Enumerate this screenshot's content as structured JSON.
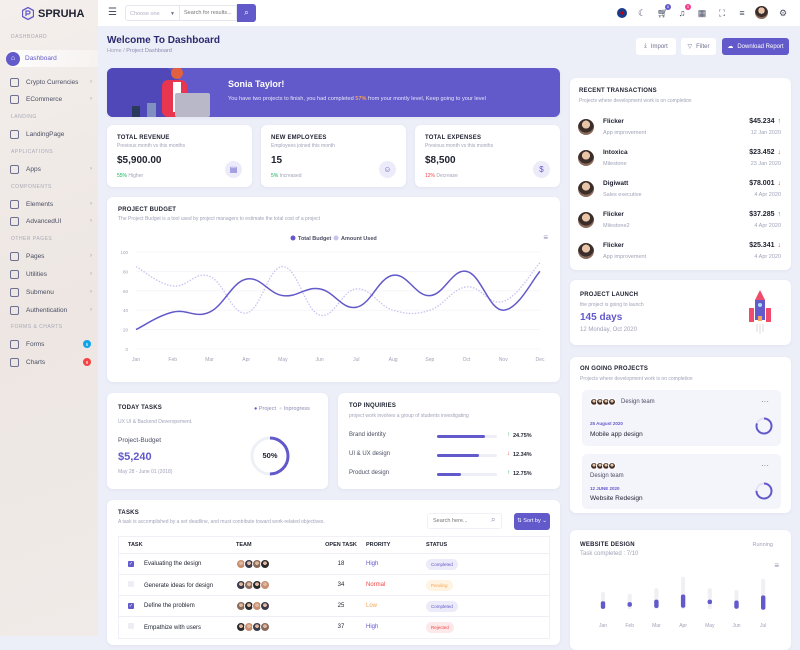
{
  "brand": {
    "name": "SPRUHA",
    "color": "#6259ca"
  },
  "sidebar": {
    "sections": [
      "DASHBOARD",
      "LANDING",
      "APPLICATIONS",
      "COMPONENTS",
      "OTHER PAGES",
      "FORMS & CHARTS"
    ],
    "items": [
      {
        "label": "Dashboard",
        "icon": "home-icon",
        "active": true
      },
      {
        "label": "Crypto Currencies",
        "icon": "wallet-icon"
      },
      {
        "label": "ECommerce",
        "icon": "cart-icon"
      },
      {
        "label": "LandingPage",
        "icon": "layout-icon"
      },
      {
        "label": "Apps",
        "icon": "files-icon"
      },
      {
        "label": "Elements",
        "icon": "box-icon"
      },
      {
        "label": "AdvancedUI",
        "icon": "briefcase-icon"
      },
      {
        "label": "Pages",
        "icon": "chat-icon"
      },
      {
        "label": "Utilities",
        "icon": "trident-icon"
      },
      {
        "label": "Submenu",
        "icon": "menu-icon"
      },
      {
        "label": "Authentication",
        "icon": "lock-icon"
      },
      {
        "label": "Forms",
        "icon": "form-icon",
        "badge": "6",
        "badge_color": "#0ea5e9"
      },
      {
        "label": "Charts",
        "icon": "bar-chart-icon",
        "badge": "9",
        "badge_color": "#f34343"
      }
    ]
  },
  "header": {
    "select_placeholder": "Choose one",
    "search_placeholder": "Search for results...",
    "cart_count": "0",
    "notif_count": "0"
  },
  "page": {
    "title": "Welcome To Dashboard",
    "breadcrumb": [
      "Home",
      "Project Dashboard"
    ],
    "import": "Import",
    "filter": "Filter",
    "download": "Download Report"
  },
  "banner": {
    "name": "Sonia Taylor!",
    "text_before": "You have two projects to finish, you had completed ",
    "percent": "57%",
    "text_after": " from your montly level, Keep going to your level"
  },
  "stats": [
    {
      "title": "TOTAL REVENUE",
      "sub": "Previous month vs this months",
      "value": "$5,900.00",
      "change": "55%",
      "change_label": " Higher",
      "color": "#19b159"
    },
    {
      "title": "NEW EMPLOYEES",
      "sub": "Employees joined this month",
      "value": "15",
      "change": "5%",
      "change_label": " Increased",
      "color": "#19b159"
    },
    {
      "title": "TOTAL EXPENSES",
      "sub": "Previous month vs this months",
      "value": "$8,500",
      "change": "12%",
      "change_label": " Decrease",
      "color": "#f34343"
    }
  ],
  "budget": {
    "title": "PROJECT BUDGET",
    "sub": "The Project Budget is a tool used by project managers to estimate the total cost of a project"
  },
  "chart_data": {
    "type": "line",
    "categories": [
      "Jan",
      "Feb",
      "Mar",
      "Apr",
      "May",
      "Jun",
      "Jul",
      "Aug",
      "Sep",
      "Oct",
      "Nov",
      "Dec"
    ],
    "yticks": [
      "0",
      "20",
      "40",
      "60",
      "80",
      "100"
    ],
    "ylim": [
      0,
      100
    ],
    "grid": true,
    "legend": "top-center",
    "series": [
      {
        "name": "Total Budget",
        "values": [
          20,
          38,
          38,
          72,
          55,
          62,
          43,
          76,
          55,
          80,
          40,
          80
        ],
        "color": "#6259ca",
        "style": "solid"
      },
      {
        "name": "Amount Used",
        "values": [
          85,
          65,
          75,
          37,
          85,
          35,
          62,
          40,
          40,
          64,
          49,
          89
        ],
        "color": "#c8c3f0",
        "style": "dotted"
      }
    ]
  },
  "today": {
    "title": "TODAY TASKS",
    "sub": "UX UI & Backend Deveropement.",
    "legend": [
      "Project",
      "Inprogress"
    ],
    "label": "Project-Budget",
    "value": "$5,240",
    "dates": "May 28 - June 01 (2018)",
    "percent": "50%",
    "progress": 50
  },
  "inquiries": {
    "title": "TOP INQUIRIES",
    "sub": "project work involves a group of students investigating",
    "rows": [
      {
        "label": "Brand identity",
        "progress": 80,
        "change": "24.75%",
        "dir": "up"
      },
      {
        "label": "UI & UX design",
        "progress": 70,
        "change": "12.34%",
        "dir": "down"
      },
      {
        "label": "Product design",
        "progress": 40,
        "change": "12.75%",
        "dir": "up"
      }
    ]
  },
  "tasks": {
    "title": "TASKS",
    "sub": "A task is accomplished by a set deadline, and must contribute toward work-related objectives.",
    "search_placeholder": "Search here...",
    "sort": "Sort by",
    "columns": [
      "TASK",
      "TEAM",
      "OPEN TASK",
      "PRORITY",
      "STATUS"
    ],
    "rows": [
      {
        "task": "Evaluating the design",
        "checked": true,
        "open": "18",
        "priority": "High",
        "priority_color": "#6259ca",
        "status": "Completed",
        "status_color": "#6259ca",
        "status_bg": "#ecebfa"
      },
      {
        "task": "Generate ideas for design",
        "checked": false,
        "open": "34",
        "priority": "Normal",
        "priority_color": "#f34343",
        "status": "Pending",
        "status_color": "#f7a556",
        "status_bg": "#fff3e2"
      },
      {
        "task": "Define the problem",
        "checked": true,
        "open": "25",
        "priority": "Low",
        "priority_color": "#f7a556",
        "status": "Completed",
        "status_color": "#6259ca",
        "status_bg": "#ecebfa"
      },
      {
        "task": "Empathize with users",
        "checked": false,
        "open": "37",
        "priority": "High",
        "priority_color": "#6259ca",
        "status": "Rejected",
        "status_color": "#f34343",
        "status_bg": "#fde8ea"
      }
    ]
  },
  "transactions": {
    "title": "RECENT TRANSACTIONS",
    "sub": "Projects where development work is on completion",
    "rows": [
      {
        "name": "Flicker",
        "sub": "App improvement",
        "amount": "$45.234",
        "date": "12 Jan 2020",
        "dir": "up"
      },
      {
        "name": "Intoxica",
        "sub": "Milestone",
        "amount": "$23.452",
        "date": "23 Jan 2020",
        "dir": "down"
      },
      {
        "name": "Digiwatt",
        "sub": "Sales executive",
        "amount": "$78.001",
        "date": "4 Apr 2020",
        "dir": "down"
      },
      {
        "name": "Flicker",
        "sub": "Milestone2",
        "amount": "$37.285",
        "date": "4 Apr 2020",
        "dir": "up"
      },
      {
        "name": "Flicker",
        "sub": "App improvement",
        "amount": "$25.341",
        "date": "4 Apr 2020",
        "dir": "down"
      }
    ]
  },
  "launch": {
    "title": "PROJECT LAUNCH",
    "sub": "the project is going to launch",
    "days": "145 days",
    "date": "12 Monday, Oct 2020"
  },
  "ongoing": {
    "title": "ON GOING PROJECTS",
    "sub": "Projects where development work is on completion",
    "projects": [
      {
        "team": "Design team",
        "date": "25 August 2020",
        "name": "Mobile app design",
        "progress": 80
      },
      {
        "team": "Design team",
        "date": "12 JUNE 2020",
        "name": "Website Redesign",
        "progress": 75
      }
    ]
  },
  "website": {
    "title": "WEBSITE DESIGN",
    "status": "Running",
    "sub": "Task completed : 7/10",
    "chart": {
      "type": "bar",
      "categories": [
        "Jan",
        "Feb",
        "Mar",
        "Apr",
        "May",
        "Jun",
        "Jul"
      ],
      "total": [
        45,
        40,
        55,
        85,
        55,
        50,
        80
      ],
      "completed": [
        20,
        12,
        22,
        35,
        12,
        22,
        38
      ]
    }
  }
}
